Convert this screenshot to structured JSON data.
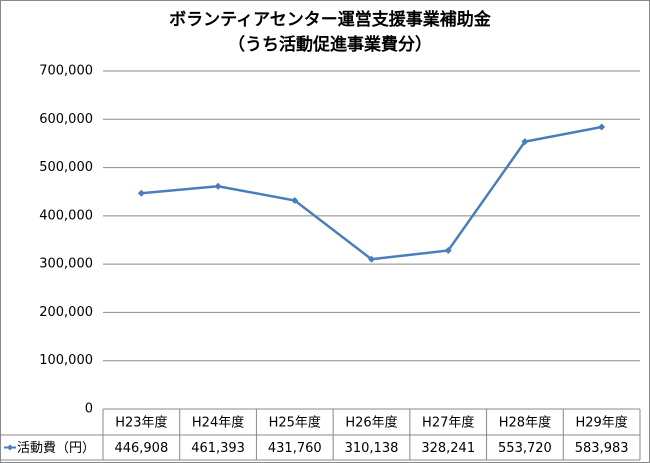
{
  "chart_data": {
    "type": "line",
    "title": "ボランティアセンター運営支援事業補助金",
    "subtitle": "（うち活動促進事業費分）",
    "categories": [
      "H23年度",
      "H24年度",
      "H25年度",
      "H26年度",
      "H27年度",
      "H28年度",
      "H29年度"
    ],
    "series": [
      {
        "name": "活動費（円）",
        "color": "#4a7ebb",
        "values": [
          446908,
          461393,
          431760,
          310138,
          328241,
          553720,
          583983
        ],
        "value_labels": [
          "446,908",
          "461,393",
          "431,760",
          "310,138",
          "328,241",
          "553,720",
          "583,983"
        ]
      }
    ],
    "ylim": [
      0,
      700000
    ],
    "yticks": [
      0,
      {
        "value": 100000,
        "label": "100,000"
      },
      {
        "value": 200000,
        "label": "200,000"
      },
      {
        "value": 300000,
        "label": "300,000"
      },
      {
        "value": 400000,
        "label": "400,000"
      },
      {
        "value": 500000,
        "label": "500,000"
      },
      {
        "value": 600000,
        "label": "600,000"
      },
      {
        "value": 700000,
        "label": "700,000"
      }
    ],
    "grid": true
  }
}
